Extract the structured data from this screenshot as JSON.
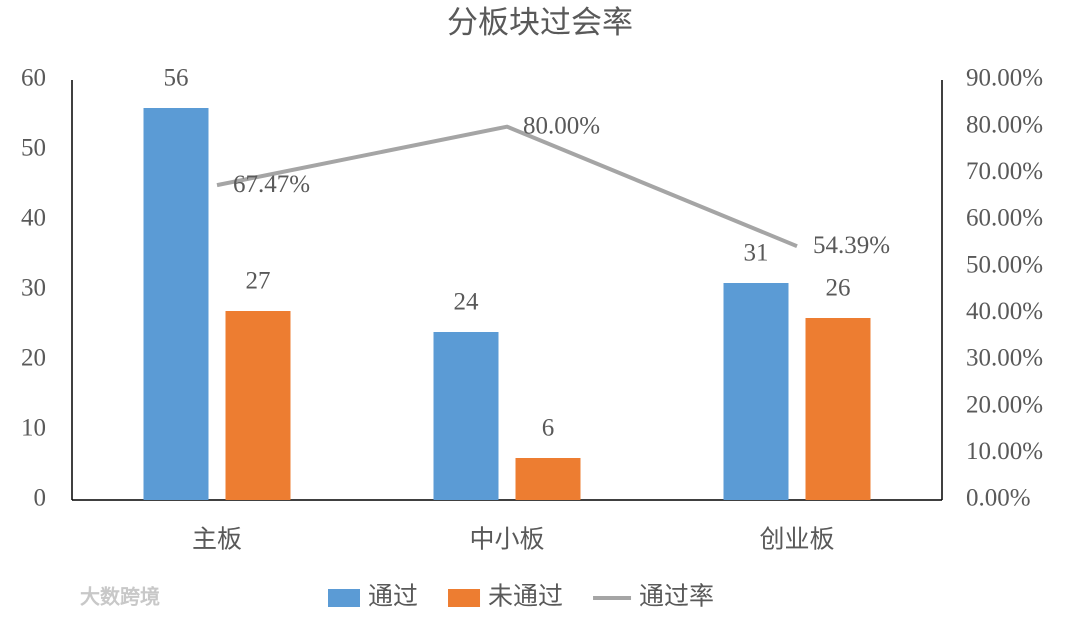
{
  "chart_data": {
    "type": "bar",
    "title": "分板块过会率",
    "categories": [
      "主板",
      "中小板",
      "创业板"
    ],
    "series": [
      {
        "name": "通过",
        "color": "#5b9bd5",
        "values": [
          56,
          24,
          31
        ]
      },
      {
        "name": "未通过",
        "color": "#ed7d31",
        "values": [
          27,
          6,
          26
        ]
      },
      {
        "name": "通过率",
        "type": "line",
        "axis": "y2",
        "color": "#a5a5a5",
        "values": [
          67.47,
          80,
          54.39
        ],
        "value_labels": [
          "67.47%",
          "80.00%",
          "54.39%"
        ]
      }
    ],
    "ylim": [
      0,
      60
    ],
    "yticks": [
      0,
      10,
      20,
      30,
      40,
      50,
      60
    ],
    "y2lim": [
      0,
      90
    ],
    "y2ticks": [
      {
        "value": 0,
        "label": "0.00%"
      },
      {
        "value": 10,
        "label": "10.00%"
      },
      {
        "value": 20,
        "label": "20.00%"
      },
      {
        "value": 30,
        "label": "30.00%"
      },
      {
        "value": 40,
        "label": "40.00%"
      },
      {
        "value": 50,
        "label": "50.00%"
      },
      {
        "value": 60,
        "label": "60.00%"
      },
      {
        "value": 70,
        "label": "70.00%"
      },
      {
        "value": 80,
        "label": "80.00%"
      },
      {
        "value": 90,
        "label": "90.00%"
      }
    ],
    "legend": "bottom",
    "watermark": "大数跨境"
  }
}
